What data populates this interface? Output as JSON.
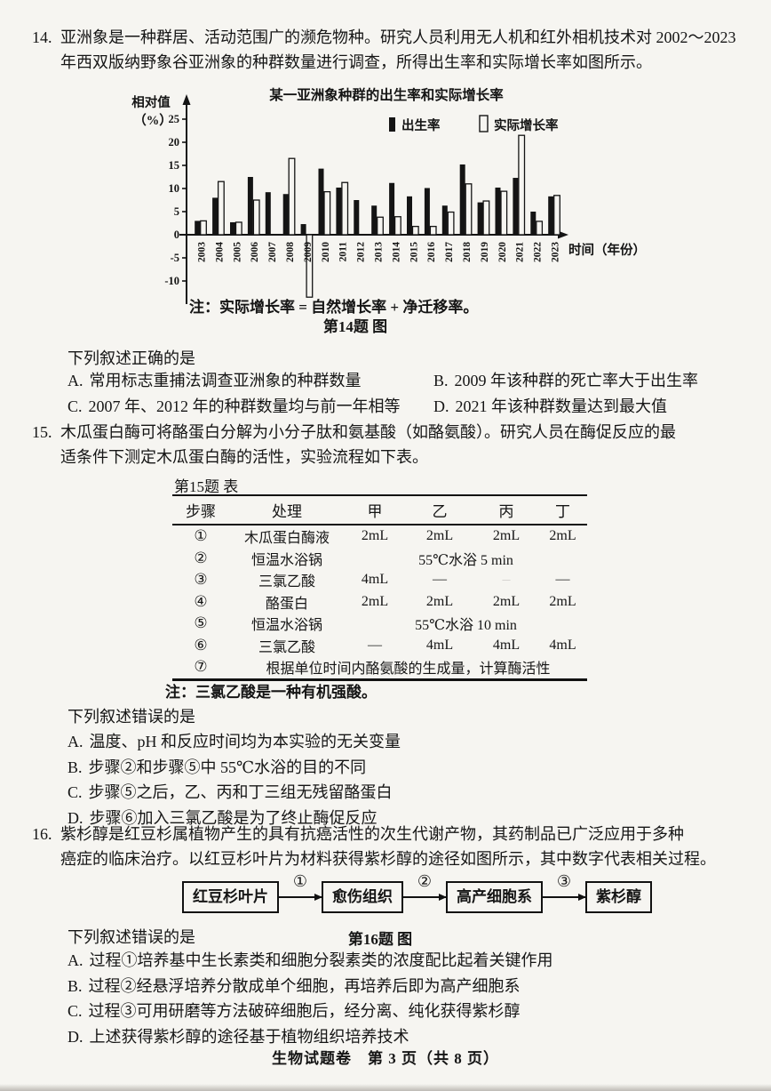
{
  "page": {
    "footer": "生物试题卷　第 3 页（共 8 页）"
  },
  "q14": {
    "number": "14.",
    "stem_lines": [
      "亚洲象是一种群居、活动范围广的濒危物种。研究人员利用无人机和红外相机技术对 2002～2023",
      "年西双版纳野象谷亚洲象的种群数量进行调查，所得出生率和实际增长率如图所示。"
    ],
    "figure_note": "注：实际增长率 = 自然增长率 + 净迁移率。",
    "figure_caption": "第14题 图",
    "prompt": "下列叙述正确的是",
    "options": [
      {
        "label": "A.",
        "text": "常用标志重捕法调查亚洲象的种群数量"
      },
      {
        "label": "B.",
        "text": "2009 年该种群的死亡率大于出生率"
      },
      {
        "label": "C.",
        "text": "2007 年、2012 年的种群数量均与前一年相等"
      },
      {
        "label": "D.",
        "text": "2021 年该种群数量达到最大值"
      }
    ]
  },
  "chart_data": {
    "type": "bar",
    "title": "某一亚洲象种群的出生率和实际增长率",
    "ylabel_line1": "相对值",
    "ylabel_line2": "（%）",
    "xlabel": "时间（年份）",
    "ylim": [
      -14,
      25
    ],
    "yticks": [
      25,
      20,
      15,
      10,
      5,
      0,
      -5,
      -10
    ],
    "grid": false,
    "legend_position": "top-right",
    "categories": [
      "2003",
      "2004",
      "2005",
      "2006",
      "2007",
      "2008",
      "2009",
      "2010",
      "2011",
      "2012",
      "2013",
      "2014",
      "2015",
      "2016",
      "2017",
      "2018",
      "2019",
      "2020",
      "2021",
      "2022",
      "2023"
    ],
    "series": [
      {
        "name": "出生率",
        "style": "filled",
        "values": [
          3.0,
          8.0,
          2.7,
          12.5,
          9.2,
          8.8,
          2.3,
          14.3,
          10.2,
          7.5,
          6.3,
          11.2,
          8.3,
          10.1,
          6.3,
          15.2,
          7.0,
          10.2,
          12.3,
          5.0,
          8.3
        ]
      },
      {
        "name": "实际增长率",
        "style": "hollow",
        "values": [
          3.0,
          11.5,
          2.7,
          7.5,
          0,
          16.5,
          -13.5,
          9.3,
          11.3,
          0,
          3.8,
          3.9,
          1.8,
          1.8,
          4.9,
          11.0,
          7.3,
          9.4,
          21.5,
          2.9,
          8.5
        ]
      }
    ]
  },
  "q15": {
    "number": "15.",
    "stem_lines": [
      "木瓜蛋白酶可将酪蛋白分解为小分子肽和氨基酸（如酪氨酸）。研究人员在酶促反应的最",
      "适条件下测定木瓜蛋白酶的活性，实验流程如下表。"
    ],
    "table": {
      "caption": "第15题 表",
      "headers": [
        "步骤",
        "处理",
        "甲",
        "乙",
        "丙",
        "丁"
      ],
      "rows": [
        {
          "step": "①",
          "treatment": "木瓜蛋白酶液",
          "jia": "2mL",
          "yi": "2mL",
          "bing": "2mL",
          "ding": "2mL"
        },
        {
          "step": "②",
          "treatment": "恒温水浴锅",
          "span": "55℃水浴 5 min"
        },
        {
          "step": "③",
          "treatment": "三氯乙酸",
          "jia": "4mL",
          "yi": "—",
          "bing": "—",
          "ding": "—"
        },
        {
          "step": "④",
          "treatment": "酪蛋白",
          "jia": "2mL",
          "yi": "2mL",
          "bing": "2mL",
          "ding": "2mL"
        },
        {
          "step": "⑤",
          "treatment": "恒温水浴锅",
          "span": "55℃水浴 10 min"
        },
        {
          "step": "⑥",
          "treatment": "三氯乙酸",
          "jia": "—",
          "yi": "4mL",
          "bing": "4mL",
          "ding": "4mL"
        },
        {
          "step": "⑦",
          "span_full": "根据单位时间内酪氨酸的生成量，计算酶活性"
        }
      ],
      "note": "注：三氯乙酸是一种有机强酸。"
    },
    "prompt": "下列叙述错误的是",
    "options": [
      {
        "label": "A.",
        "text": "温度、pH 和反应时间均为本实验的无关变量"
      },
      {
        "label": "B.",
        "text": "步骤②和步骤⑤中 55℃水浴的目的不同"
      },
      {
        "label": "C.",
        "text": "步骤⑤之后，乙、丙和丁三组无残留酪蛋白"
      },
      {
        "label": "D.",
        "text": "步骤⑥加入三氯乙酸是为了终止酶促反应"
      }
    ]
  },
  "q16": {
    "number": "16.",
    "stem_lines": [
      "紫杉醇是红豆杉属植物产生的具有抗癌活性的次生代谢产物，其药制品已广泛应用于多种",
      "癌症的临床治疗。以红豆杉叶片为材料获得紫杉醇的途径如图所示，其中数字代表相关过程。"
    ],
    "flow": {
      "boxes": [
        "红豆杉叶片",
        "愈伤组织",
        "高产细胞系",
        "紫杉醇"
      ],
      "steps": [
        "①",
        "②",
        "③"
      ],
      "caption": "第16题 图"
    },
    "prompt": "下列叙述错误的是",
    "options": [
      {
        "label": "A.",
        "text": "过程①培养基中生长素类和细胞分裂素类的浓度配比起着关键作用"
      },
      {
        "label": "B.",
        "text": "过程②经悬浮培养分散成单个细胞，再培养后即为高产细胞系"
      },
      {
        "label": "C.",
        "text": "过程③可用研磨等方法破碎细胞后，经分离、纯化获得紫杉醇"
      },
      {
        "label": "D.",
        "text": "上述获得紫杉醇的途径基于植物组织培养技术"
      }
    ]
  }
}
